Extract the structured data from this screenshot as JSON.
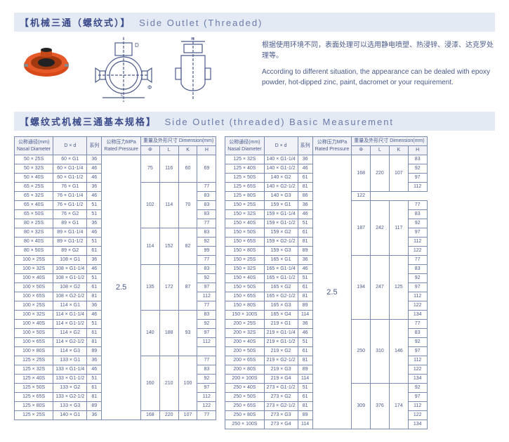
{
  "section1": {
    "cn": "【机械三通（螺纹式）】",
    "en": "Side Outlet (Threaded)"
  },
  "notes": {
    "cn": "根据使用环境不同，表面处理可以选用静电喷塑、热浸锌、浸漆、达克罗处理等。",
    "en": "According to different situation, the appearance can be dealed with epoxy powder, hot-dipped zinc, paint, dacromet or your requirement."
  },
  "section2": {
    "cn": "【螺纹式机械三通基本规格】",
    "en": "Side Outlet (threaded) Basic Measurement"
  },
  "drawings": {
    "photo_bg": "#d94a1a",
    "line_color": "#4a5a8a"
  },
  "headers": {
    "col1a": "公称通径(mm)",
    "col1b": "Nasal Diameter",
    "col2": "D × d",
    "col3a": "系列",
    "col3b": "",
    "col4a": "公称压力MPa",
    "col4b": "Rated Pressure",
    "col5": "重量及外形尺寸 Dimension(mm)",
    "sub_phi": "Φ",
    "sub_l": "L",
    "sub_k": "K",
    "sub_h": "H"
  },
  "left": {
    "pressure": "2.5",
    "rows": [
      {
        "nd": "50 × 25S",
        "dxd": "60 × G1",
        "s": "36",
        "phi": "75",
        "l": "116",
        "k": "60",
        "h": "69",
        "phiSpan": 3,
        "lSpan": 3,
        "kSpan": 3,
        "hSpan": 3
      },
      {
        "nd": "50 × 32S",
        "dxd": "60 × G1-1/4",
        "s": "46"
      },
      {
        "nd": "50 × 40S",
        "dxd": "60 × G1-1/2",
        "s": "46"
      },
      {
        "nd": "65 × 25S",
        "dxd": "76 × G1",
        "s": "36",
        "phi": "102",
        "l": "114",
        "k": "70",
        "h": "77",
        "phiSpan": 5,
        "lSpan": 5,
        "kSpan": 5,
        "hSpan": 1
      },
      {
        "nd": "65 × 32S",
        "dxd": "76 × G1-1/4",
        "s": "46",
        "h": "83",
        "hSpan": 1
      },
      {
        "nd": "65 × 40S",
        "dxd": "76 × G1-1/2",
        "s": "51",
        "h": "83",
        "hSpan": 1
      },
      {
        "nd": "65 × 50S",
        "dxd": "76 × G2",
        "s": "51",
        "h": "83",
        "hSpan": 1
      },
      {
        "nd": "80 × 25S",
        "dxd": "89 × G1",
        "s": "36",
        "h": "77",
        "hSpan": 1
      },
      {
        "nd": "80 × 32S",
        "dxd": "89 × G1-1/4",
        "s": "46",
        "phi": "114",
        "l": "152",
        "k": "82",
        "h": "83",
        "phiSpan": 4,
        "lSpan": 4,
        "kSpan": 4,
        "hSpan": 1
      },
      {
        "nd": "80 × 40S",
        "dxd": "89 × G1-1/2",
        "s": "51",
        "h": "92",
        "hSpan": 1
      },
      {
        "nd": "80 × 50S",
        "dxd": "89 × G2",
        "s": "61",
        "h": "99",
        "hSpan": 1
      },
      {
        "nd": "100 × 25S",
        "dxd": "108 × G1",
        "s": "36",
        "h": "77",
        "hSpan": 1
      },
      {
        "nd": "100 × 32S",
        "dxd": "108 × G1-1/4",
        "s": "46",
        "phi": "135",
        "l": "172",
        "k": "87",
        "h": "83",
        "phiSpan": 5,
        "lSpan": 5,
        "kSpan": 5,
        "hSpan": 1
      },
      {
        "nd": "100 × 40S",
        "dxd": "108 × G1-1/2",
        "s": "51",
        "h": "92",
        "hSpan": 1
      },
      {
        "nd": "100 × 50S",
        "dxd": "108 × G2",
        "s": "61",
        "h": "97",
        "hSpan": 1
      },
      {
        "nd": "100 × 65S",
        "dxd": "108 × G2-1/2",
        "s": "81",
        "h": "112",
        "hSpan": 1
      },
      {
        "nd": "100 × 25S",
        "dxd": "114 × G1",
        "s": "36",
        "h": "77",
        "hSpan": 1
      },
      {
        "nd": "100 × 32S",
        "dxd": "114 × G1-1/4",
        "s": "46",
        "phi": "140",
        "l": "188",
        "k": "93",
        "h": "83",
        "phiSpan": 5,
        "lSpan": 5,
        "kSpan": 5,
        "hSpan": 1
      },
      {
        "nd": "100 × 40S",
        "dxd": "114 × G1-1/2",
        "s": "51",
        "h": "92",
        "hSpan": 1
      },
      {
        "nd": "100 × 50S",
        "dxd": "114 × G2",
        "s": "61",
        "h": "97",
        "hSpan": 1
      },
      {
        "nd": "100 × 65S",
        "dxd": "114 × G2-1/2",
        "s": "81",
        "h": "112",
        "hSpan": 1
      },
      {
        "nd": "100 × 80S",
        "dxd": "114 × G3",
        "s": "89",
        "h": "",
        "hSpan": 1
      },
      {
        "nd": "125 × 25S",
        "dxd": "133 × G1",
        "s": "36",
        "phi": "160",
        "l": "210",
        "k": "100",
        "h": "77",
        "phiSpan": 6,
        "lSpan": 6,
        "kSpan": 6,
        "hSpan": 1
      },
      {
        "nd": "125 × 32S",
        "dxd": "133 × G1-1/4",
        "s": "46",
        "h": "83",
        "hSpan": 1
      },
      {
        "nd": "125 × 40S",
        "dxd": "133 × G1-1/2",
        "s": "51",
        "h": "92",
        "hSpan": 1
      },
      {
        "nd": "125 × 50S",
        "dxd": "133 × G2",
        "s": "61",
        "h": "97",
        "hSpan": 1
      },
      {
        "nd": "125 × 65S",
        "dxd": "133 × G2-1/2",
        "s": "81",
        "h": "112",
        "hSpan": 1
      },
      {
        "nd": "125 × 80S",
        "dxd": "133 × G3",
        "s": "89",
        "h": "122",
        "hSpan": 1
      },
      {
        "nd": "125 × 25S",
        "dxd": "140 × G1",
        "s": "36",
        "phi": "168",
        "l": "220",
        "k": "107",
        "h": "77",
        "phiSpan": 1,
        "lSpan": 1,
        "kSpan": 1,
        "hSpan": 1
      }
    ]
  },
  "right": {
    "pressure": "2.5",
    "rows": [
      {
        "nd": "125 × 32S",
        "dxd": "140 × G1-1/4",
        "s": "36",
        "phi": "168",
        "l": "220",
        "k": "107",
        "h": "83",
        "phiSpan": 4,
        "lSpan": 4,
        "kSpan": 4,
        "hSpan": 1
      },
      {
        "nd": "125 × 40S",
        "dxd": "140 × G1-1/2",
        "s": "46",
        "h": "92",
        "hSpan": 1
      },
      {
        "nd": "125 × 50S",
        "dxd": "140 × G2",
        "s": "61",
        "h": "97",
        "hSpan": 1
      },
      {
        "nd": "125 × 65S",
        "dxd": "140 × G2-1/2",
        "s": "81",
        "h": "112",
        "hSpan": 1
      },
      {
        "nd": "125 × 80S",
        "dxd": "140 × G3",
        "s": "86",
        "h": "122",
        "hSpan": 1
      },
      {
        "nd": "150 × 25S",
        "dxd": "159 × G1",
        "s": "36",
        "phi": "187",
        "l": "242",
        "k": "117",
        "h": "77",
        "phiSpan": 6,
        "lSpan": 6,
        "kSpan": 6,
        "hSpan": 1
      },
      {
        "nd": "150 × 32S",
        "dxd": "159 × G1-1/4",
        "s": "46",
        "h": "83",
        "hSpan": 1
      },
      {
        "nd": "150 × 40S",
        "dxd": "159 × G1-1/2",
        "s": "51",
        "h": "92",
        "hSpan": 1
      },
      {
        "nd": "150 × 50S",
        "dxd": "159 × G2",
        "s": "61",
        "h": "97",
        "hSpan": 1
      },
      {
        "nd": "150 × 65S",
        "dxd": "159 × G2-1/2",
        "s": "81",
        "h": "112",
        "hSpan": 1
      },
      {
        "nd": "150 × 80S",
        "dxd": "159 × G3",
        "s": "89",
        "h": "122",
        "hSpan": 1
      },
      {
        "nd": "150 × 25S",
        "dxd": "165 × G1",
        "s": "36",
        "phi": "194",
        "l": "247",
        "k": "125",
        "h": "77",
        "phiSpan": 7,
        "lSpan": 7,
        "kSpan": 7,
        "hSpan": 1
      },
      {
        "nd": "150 × 32S",
        "dxd": "165 × G1-1/4",
        "s": "46",
        "h": "83",
        "hSpan": 1
      },
      {
        "nd": "150 × 40S",
        "dxd": "165 × G1-1/2",
        "s": "51",
        "h": "92",
        "hSpan": 1
      },
      {
        "nd": "150 × 50S",
        "dxd": "165 × G2",
        "s": "61",
        "h": "97",
        "hSpan": 1
      },
      {
        "nd": "150 × 65S",
        "dxd": "165 × G2-1/2",
        "s": "81",
        "h": "112",
        "hSpan": 1
      },
      {
        "nd": "150 × 80S",
        "dxd": "165 × G3",
        "s": "89",
        "h": "122",
        "hSpan": 1
      },
      {
        "nd": "150 × 100S",
        "dxd": "165 × G4",
        "s": "114",
        "h": "134",
        "hSpan": 1
      },
      {
        "nd": "200 × 25S",
        "dxd": "219 × G1",
        "s": "36",
        "phi": "250",
        "l": "310",
        "k": "146",
        "h": "77",
        "phiSpan": 7,
        "lSpan": 7,
        "kSpan": 7,
        "hSpan": 1
      },
      {
        "nd": "200 × 32S",
        "dxd": "219 × G1-1/4",
        "s": "46",
        "h": "83",
        "hSpan": 1
      },
      {
        "nd": "200 × 40S",
        "dxd": "219 × G1-1/2",
        "s": "51",
        "h": "92",
        "hSpan": 1
      },
      {
        "nd": "200 × 50S",
        "dxd": "219 × G2",
        "s": "61",
        "h": "97",
        "hSpan": 1
      },
      {
        "nd": "200 × 65S",
        "dxd": "219 × G2-1/2",
        "s": "81",
        "h": "112",
        "hSpan": 1
      },
      {
        "nd": "200 × 80S",
        "dxd": "219 × G3",
        "s": "89",
        "h": "122",
        "hSpan": 1
      },
      {
        "nd": "200 × 100S",
        "dxd": "219 × G4",
        "s": "114",
        "h": "134",
        "hSpan": 1
      },
      {
        "nd": "250 × 40S",
        "dxd": "273 × G1-1/2",
        "s": "51",
        "phi": "309",
        "l": "376",
        "k": "174",
        "h": "92",
        "phiSpan": 5,
        "lSpan": 5,
        "kSpan": 5,
        "hSpan": 1
      },
      {
        "nd": "250 × 50S",
        "dxd": "273 × G2",
        "s": "61",
        "h": "97",
        "hSpan": 1
      },
      {
        "nd": "250 × 65S",
        "dxd": "273 × G2-1/2",
        "s": "81",
        "h": "112",
        "hSpan": 1
      },
      {
        "nd": "250 × 80S",
        "dxd": "273 × G3",
        "s": "89",
        "h": "122",
        "hSpan": 1
      },
      {
        "nd": "250 × 100S",
        "dxd": "273 × G4",
        "s": "114",
        "h": "134",
        "hSpan": 1
      }
    ]
  }
}
